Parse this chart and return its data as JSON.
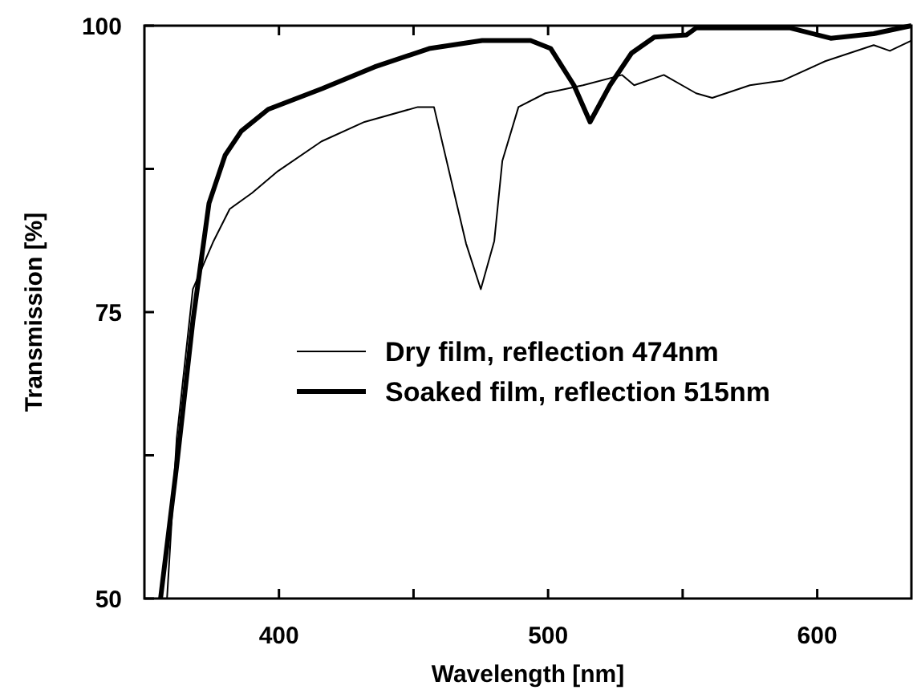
{
  "chart_data": {
    "type": "line",
    "xlabel": "Wavelength [nm]",
    "ylabel": "Transmission [%]",
    "xlim": [
      350,
      635
    ],
    "ylim": [
      50,
      100
    ],
    "xticks": [
      400,
      {
        "value": 450,
        "label": null
      },
      500,
      {
        "value": 550,
        "label": null
      },
      600
    ],
    "yticks": [
      50,
      {
        "value": 62.5,
        "label": null
      },
      75,
      {
        "value": 87.5,
        "label": null
      },
      100
    ],
    "legend": "right",
    "grid": false,
    "marker": "none",
    "line_style": "solid",
    "series": [
      {
        "name": "Dry film, reflection 474nm",
        "color": "#000000",
        "x": [
          358.4,
          362,
          368,
          375.7,
          381.7,
          390,
          399.6,
          415.8,
          431.8,
          451.6,
          457.6,
          469.5,
          475,
          480,
          483,
          489,
          499,
          513,
          527.5,
          532,
          543,
          555,
          561,
          575,
          587,
          603,
          621,
          627,
          635
        ],
        "values": [
          50,
          64,
          77,
          81.2,
          84,
          85.4,
          87.3,
          89.9,
          91.6,
          92.9,
          92.9,
          81,
          77,
          81.2,
          88.2,
          92.9,
          94.1,
          94.8,
          95.7,
          94.8,
          95.7,
          94.1,
          93.7,
          94.8,
          95.2,
          96.9,
          98.3,
          97.8,
          98.7
        ]
      },
      {
        "name": "Soaked film, reflection 515nm",
        "color": "#000000",
        "x": [
          356,
          362,
          368,
          374,
          380,
          386,
          396,
          416,
          435.5,
          455.8,
          475.5,
          493.5,
          501,
          509.6,
          515.6,
          523,
          531,
          539.5,
          551.5,
          555,
          590,
          605,
          621,
          635
        ],
        "values": [
          50,
          61.6,
          74.2,
          84.5,
          88.7,
          90.8,
          92.7,
          94.5,
          96.4,
          98,
          98.7,
          98.7,
          98,
          94.8,
          91.6,
          94.8,
          97.6,
          99,
          99.2,
          99.8,
          99.8,
          98.9,
          99.3,
          100
        ]
      }
    ]
  }
}
